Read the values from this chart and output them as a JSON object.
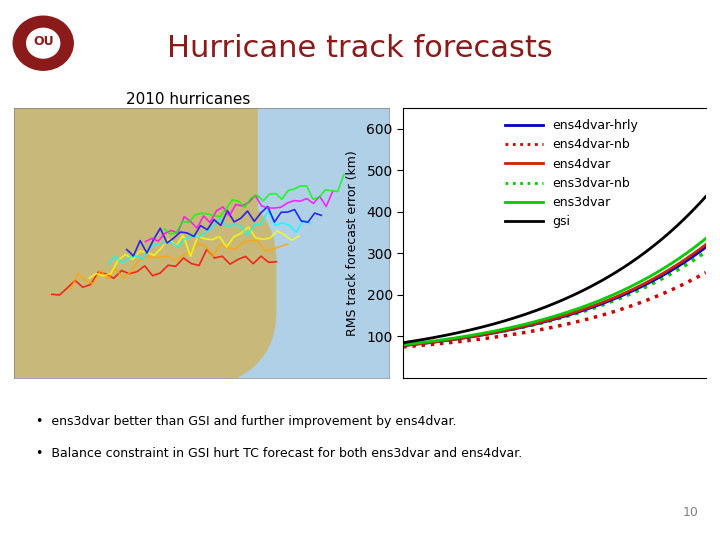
{
  "title": "Hurricane track forecasts",
  "subtitle": "2010 hurricanes",
  "title_color": "#8B1A1A",
  "header_line_color": "#8B1A1A",
  "background_color": "#ffffff",
  "ylabel": "RMS track forecast error (km)",
  "ylim": [
    0,
    650
  ],
  "yticks": [
    100,
    200,
    300,
    400,
    500,
    600
  ],
  "xlim": [
    0,
    120
  ],
  "series": {
    "ens4dvar-hrly": {
      "color": "#0000CC",
      "linestyle": "solid",
      "linewidth": 2.0
    },
    "ens4dvar-nb": {
      "color": "#CC0000",
      "linestyle": "dotted",
      "linewidth": 2.0
    },
    "ens4dvar": {
      "color": "#CC2200",
      "linestyle": "solid",
      "linewidth": 2.0
    },
    "ens3dvar-nb": {
      "color": "#00CC00",
      "linestyle": "dotted",
      "linewidth": 2.0
    },
    "ens3dvar": {
      "color": "#00CC00",
      "linestyle": "solid",
      "linewidth": 2.0
    },
    "gsi": {
      "color": "#000000",
      "linestyle": "solid",
      "linewidth": 2.0
    }
  },
  "bullet_points": [
    "ens3dvar better than GSI and further improvement by ens4dvar.",
    "Balance constraint in GSI hurt TC forecast for both ens3dvar and ens4dvar."
  ],
  "page_number": "10",
  "ou_logo_color": "#8B1A1A"
}
